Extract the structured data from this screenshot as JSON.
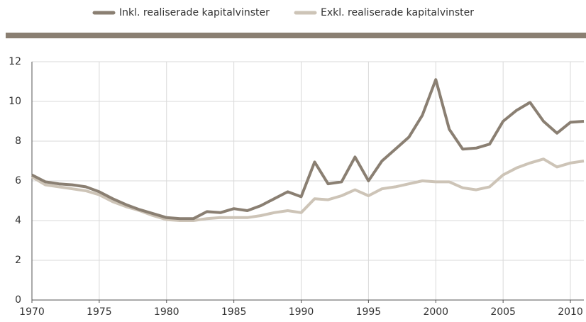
{
  "chart_data": {
    "type": "line",
    "x": [
      1970,
      1971,
      1972,
      1973,
      1974,
      1975,
      1976,
      1977,
      1978,
      1979,
      1980,
      1981,
      1982,
      1983,
      1984,
      1985,
      1986,
      1987,
      1988,
      1989,
      1990,
      1991,
      1992,
      1993,
      1994,
      1995,
      1996,
      1997,
      1998,
      1999,
      2000,
      2001,
      2002,
      2003,
      2004,
      2005,
      2006,
      2007,
      2008,
      2009,
      2010,
      2011
    ],
    "series": [
      {
        "name": "Inkl. realiserade kapitalvinster",
        "color": "#8a7f72",
        "values": [
          6.3,
          5.95,
          5.85,
          5.8,
          5.7,
          5.45,
          5.1,
          4.8,
          4.55,
          4.35,
          4.15,
          4.1,
          4.1,
          4.45,
          4.4,
          4.6,
          4.5,
          4.75,
          5.1,
          5.45,
          5.2,
          6.95,
          5.85,
          5.95,
          7.2,
          6.0,
          7.0,
          7.6,
          8.2,
          9.3,
          11.1,
          8.6,
          7.6,
          7.65,
          7.85,
          9.0,
          9.55,
          9.95,
          9.0,
          8.4,
          8.95,
          9.0
        ]
      },
      {
        "name": "Exkl. realiserade kapitalvinster",
        "color": "#cdc4b7",
        "values": [
          6.2,
          5.8,
          5.7,
          5.6,
          5.5,
          5.3,
          4.95,
          4.7,
          4.5,
          4.25,
          4.05,
          4.0,
          4.0,
          4.1,
          4.15,
          4.15,
          4.15,
          4.25,
          4.4,
          4.5,
          4.4,
          5.1,
          5.05,
          5.25,
          5.55,
          5.25,
          5.6,
          5.7,
          5.85,
          6.0,
          5.95,
          5.95,
          5.65,
          5.55,
          5.7,
          6.3,
          6.65,
          6.9,
          7.1,
          6.7,
          6.9,
          7.0
        ]
      }
    ],
    "xlim": [
      1970,
      2011
    ],
    "xticks": [
      1970,
      1975,
      1980,
      1985,
      1990,
      1995,
      2000,
      2005,
      2010
    ],
    "ylim": [
      0,
      12
    ],
    "yticks": [
      0,
      2,
      4,
      6,
      8,
      10,
      12
    ],
    "grid": true
  }
}
